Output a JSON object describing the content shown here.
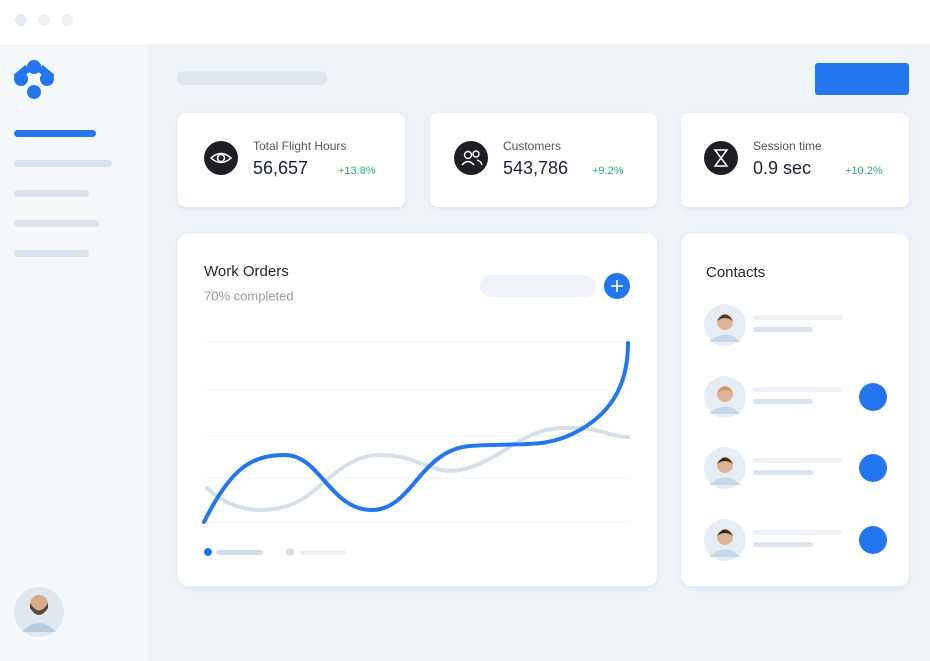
{
  "stats": [
    {
      "label": "Total Flight Hours",
      "value": "56,657",
      "change": "+13.8%"
    },
    {
      "label": "Customers",
      "value": "543,786",
      "change": "+9.2%"
    },
    {
      "label": "Session time",
      "value": "0.9 sec",
      "change": "+10.2%"
    }
  ],
  "work_orders": {
    "title": "Work Orders",
    "subtitle": "70% completed"
  },
  "contacts": {
    "title": "Contacts"
  }
}
